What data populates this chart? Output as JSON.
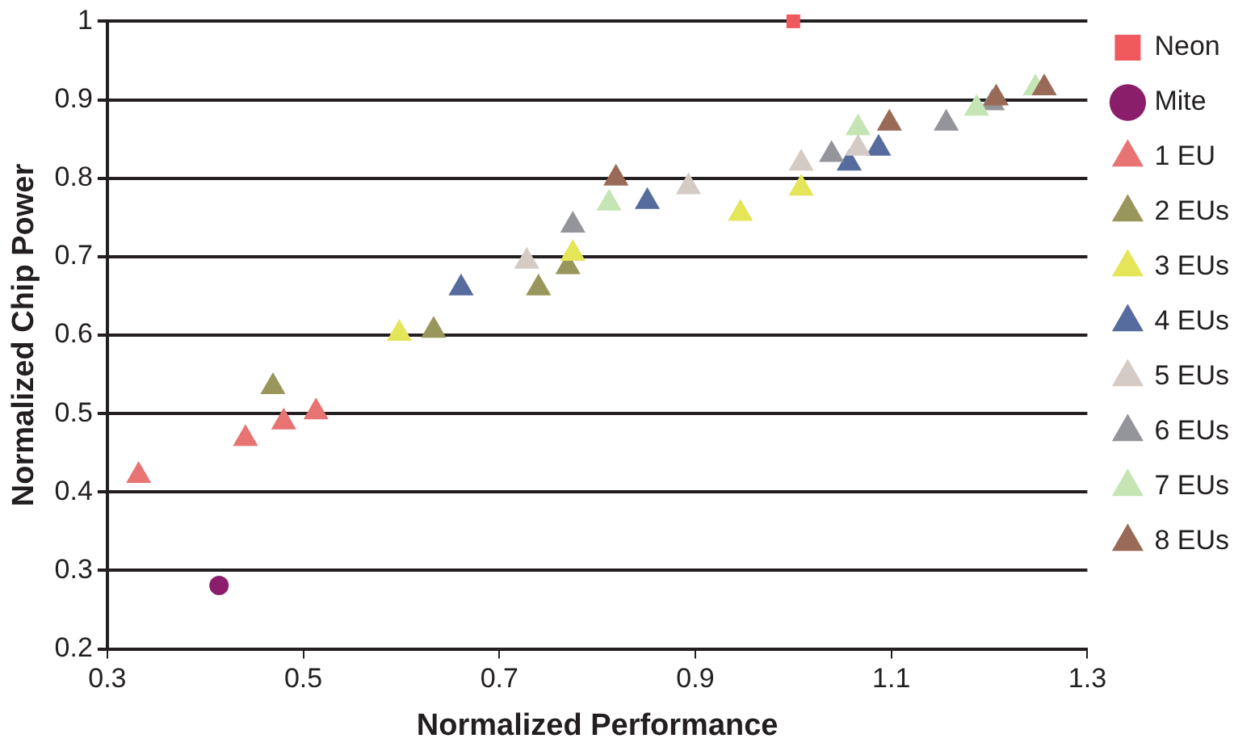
{
  "chart_data": {
    "type": "scatter",
    "xlabel": "Normalized Performance",
    "ylabel": "Normalized Chip Power",
    "xlim": [
      0.3,
      1.3
    ],
    "xticks": [
      0.3,
      0.5,
      0.7,
      0.9,
      1.1,
      1.3
    ],
    "ylim": [
      0.2,
      1
    ],
    "yticks": [
      0.2,
      0.3,
      0.4,
      0.5,
      0.6,
      0.7,
      0.8,
      0.9,
      1
    ],
    "grid": "y",
    "legend": "right",
    "series": [
      {
        "name": "Neon",
        "color": "#f05a5f",
        "marker": "square",
        "x": [
          1.0
        ],
        "values": [
          1.0
        ]
      },
      {
        "name": "Mite",
        "color": "#8b1e6b",
        "marker": "circle",
        "x": [
          0.414
        ],
        "values": [
          0.281
        ]
      },
      {
        "name": "1 EU",
        "color": "#e87373",
        "marker": "triangle",
        "x": [
          0.332,
          0.441,
          0.48,
          0.513
        ],
        "values": [
          0.421,
          0.468,
          0.489,
          0.502
        ]
      },
      {
        "name": "2 EUs",
        "color": "#98965a",
        "marker": "triangle",
        "x": [
          0.469,
          0.633,
          0.74,
          0.77
        ],
        "values": [
          0.534,
          0.606,
          0.66,
          0.687
        ]
      },
      {
        "name": "3 EUs",
        "color": "#e5e55a",
        "marker": "triangle",
        "x": [
          0.598,
          0.775,
          0.946,
          1.008
        ],
        "values": [
          0.602,
          0.704,
          0.755,
          0.787
        ]
      },
      {
        "name": "4 EUs",
        "color": "#566b9e",
        "marker": "triangle",
        "x": [
          0.661,
          0.851,
          1.057,
          1.087
        ],
        "values": [
          0.66,
          0.77,
          0.819,
          0.838
        ]
      },
      {
        "name": "5 EUs",
        "color": "#d5cbc5",
        "marker": "triangle",
        "x": [
          0.728,
          0.893,
          1.008,
          1.066
        ],
        "values": [
          0.694,
          0.789,
          0.819,
          0.838
        ]
      },
      {
        "name": "6 EUs",
        "color": "#94959a",
        "marker": "triangle",
        "x": [
          0.775,
          1.039,
          1.156,
          1.203
        ],
        "values": [
          0.74,
          0.83,
          0.87,
          0.896
        ]
      },
      {
        "name": "7 EUs",
        "color": "#c5e5b5",
        "marker": "triangle",
        "x": [
          0.812,
          1.066,
          1.187,
          1.247
        ],
        "values": [
          0.768,
          0.864,
          0.889,
          0.915
        ]
      },
      {
        "name": "8 EUs",
        "color": "#9a6a58",
        "marker": "triangle",
        "x": [
          0.819,
          1.098,
          1.207,
          1.256
        ],
        "values": [
          0.8,
          0.87,
          0.902,
          0.915
        ]
      }
    ]
  }
}
